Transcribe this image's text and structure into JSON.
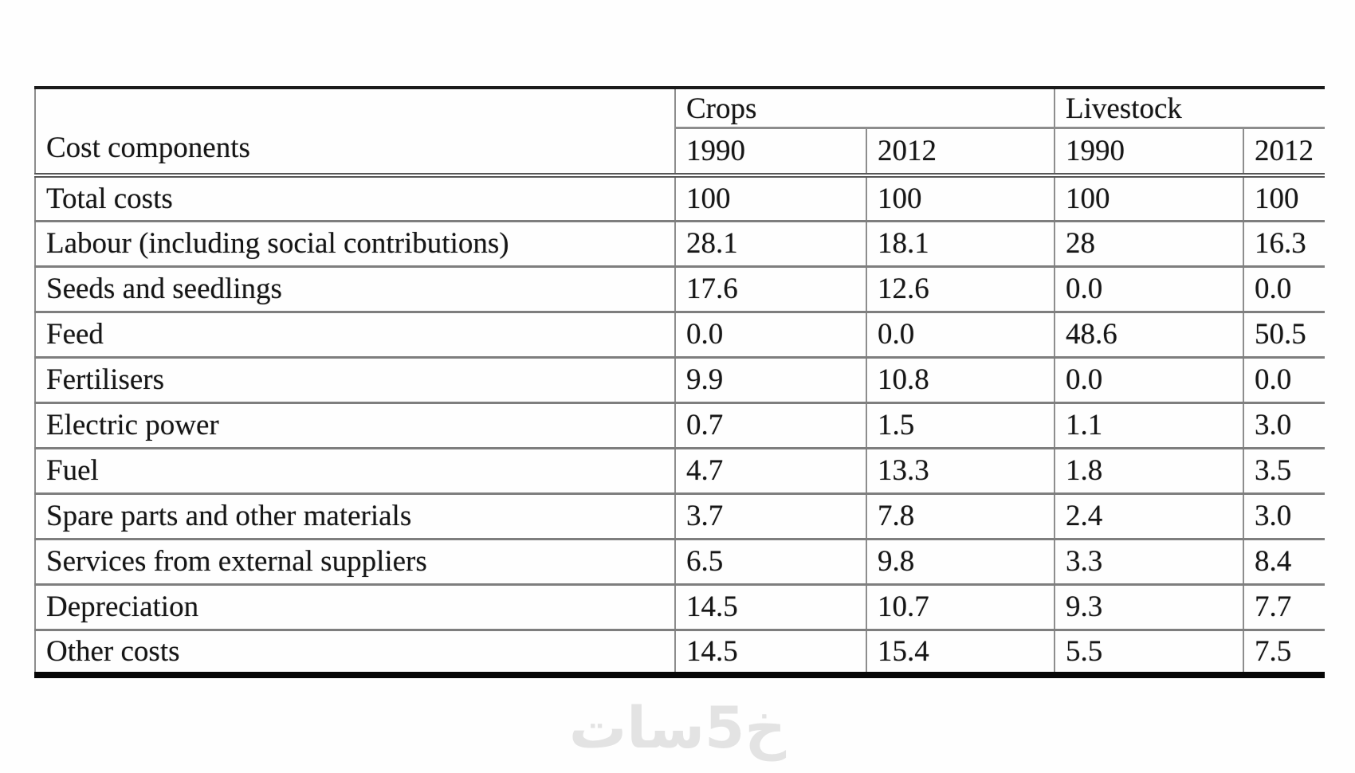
{
  "document": {
    "kind": "scanned table from a report page"
  },
  "chart_data": {
    "type": "table",
    "corner_header": "Cost components",
    "column_groups": [
      {
        "label": "Crops",
        "columns": [
          "1990",
          "2012"
        ]
      },
      {
        "label": "Livestock",
        "columns": [
          "1990",
          "2012"
        ]
      }
    ],
    "rows": [
      {
        "label": "Total costs",
        "values": [
          "100",
          "100",
          "100",
          "100"
        ]
      },
      {
        "label": "Labour (including social contributions)",
        "values": [
          "28.1",
          "18.1",
          "28",
          "16.3"
        ]
      },
      {
        "label": "Seeds and seedlings",
        "values": [
          "17.6",
          "12.6",
          "0.0",
          "0.0"
        ]
      },
      {
        "label": "Feed",
        "values": [
          "0.0",
          "0.0",
          "48.6",
          "50.5"
        ]
      },
      {
        "label": "Fertilisers",
        "values": [
          "9.9",
          "10.8",
          "0.0",
          "0.0"
        ]
      },
      {
        "label": "Electric power",
        "values": [
          "0.7",
          "1.5",
          "1.1",
          "3.0"
        ]
      },
      {
        "label": "Fuel",
        "values": [
          "4.7",
          "13.3",
          "1.8",
          "3.5"
        ]
      },
      {
        "label": "Spare parts and other materials",
        "values": [
          "3.7",
          "7.8",
          "2.4",
          "3.0"
        ]
      },
      {
        "label": "Services from external suppliers",
        "values": [
          "6.5",
          "9.8",
          "3.3",
          "8.4"
        ]
      },
      {
        "label": "Depreciation",
        "values": [
          "14.5",
          "10.7",
          "9.3",
          "7.7"
        ]
      },
      {
        "label": "Other costs",
        "values": [
          "14.5",
          "15.4",
          "5.5",
          "7.5"
        ]
      }
    ]
  },
  "watermark": {
    "text": "خ5سات",
    "color": "#e3e3e3"
  }
}
